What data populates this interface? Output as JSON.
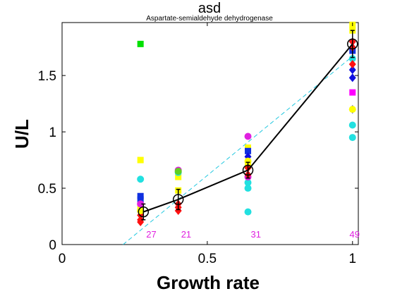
{
  "chart_data": {
    "type": "scatter",
    "title": "asd",
    "subtitle": "Aspartate-semialdehyde dehydrogenase",
    "xlabel": "Growth rate",
    "ylabel": "U/L",
    "xlim": [
      0,
      1.02
    ],
    "ylim": [
      0,
      1.97
    ],
    "xticks": [
      0,
      0.5,
      1
    ],
    "xtick_labels": [
      "0",
      "0.5",
      "1"
    ],
    "yticks": [
      0,
      0.5,
      1,
      1.5
    ],
    "ytick_labels": [
      "0",
      "0.5",
      "1",
      "1.5"
    ],
    "grid": false,
    "legend": "none",
    "mean_line": {
      "x": [
        0.28,
        0.4,
        0.64,
        1.0
      ],
      "y": [
        0.29,
        0.4,
        0.66,
        1.78
      ],
      "err": [
        0.07,
        0.09,
        0.07,
        0.12
      ],
      "color": "#000000"
    },
    "fit_line": {
      "x": [
        0.21,
        1.0
      ],
      "y": [
        0.0,
        1.67
      ],
      "color": "#22c8e0",
      "style": "dashed"
    },
    "counts": [
      {
        "x": 0.3,
        "label": "27"
      },
      {
        "x": 0.42,
        "label": "21"
      },
      {
        "x": 0.66,
        "label": "31"
      },
      {
        "x": 1.0,
        "label": "49"
      }
    ],
    "series": [
      {
        "color": "#00e000",
        "marker": "square",
        "x": [
          0.27
        ],
        "y": [
          1.78
        ]
      },
      {
        "color": "#ffff00",
        "marker": "square",
        "x": [
          0.27,
          0.27,
          0.4,
          0.4,
          0.64,
          0.64,
          1.0,
          1.0
        ],
        "y": [
          0.75,
          0.33,
          0.6,
          0.48,
          0.86,
          0.7,
          1.95,
          1.9
        ]
      },
      {
        "color": "#22e0e0",
        "marker": "circle",
        "x": [
          0.27,
          0.4,
          0.64,
          0.64,
          0.64,
          1.0,
          1.0,
          1.0
        ],
        "y": [
          0.58,
          0.64,
          0.5,
          0.29,
          0.55,
          1.06,
          0.95,
          1.65
        ]
      },
      {
        "color": "#1030e0",
        "marker": "square",
        "x": [
          0.27,
          0.27,
          0.64,
          1.0
        ],
        "y": [
          0.43,
          0.4,
          0.83,
          1.72
        ]
      },
      {
        "color": "#e020e0",
        "marker": "circle",
        "x": [
          0.27,
          0.4,
          0.64,
          0.64
        ],
        "y": [
          0.36,
          0.66,
          0.96,
          0.6
        ]
      },
      {
        "color": "#ff00ff",
        "marker": "square",
        "x": [
          1.0
        ],
        "y": [
          1.35
        ]
      },
      {
        "color": "#1010e0",
        "marker": "diamond",
        "x": [
          0.64,
          1.0,
          1.0,
          1.0
        ],
        "y": [
          0.78,
          1.48,
          1.2,
          1.55
        ]
      },
      {
        "color": "#ff1010",
        "marker": "diamond",
        "x": [
          0.27,
          0.27,
          0.27,
          0.4,
          0.4,
          0.4,
          0.64,
          0.64,
          1.0,
          1.0,
          1.0
        ],
        "y": [
          0.26,
          0.22,
          0.2,
          0.36,
          0.33,
          0.3,
          0.68,
          0.62,
          1.8,
          1.75,
          1.6
        ]
      },
      {
        "color": "#ffff00",
        "marker": "circle",
        "x": [
          0.27,
          0.64,
          1.0
        ],
        "y": [
          0.3,
          0.74,
          1.2
        ]
      },
      {
        "color": "#60d020",
        "marker": "circle",
        "x": [
          0.4
        ],
        "y": [
          0.65
        ]
      }
    ]
  }
}
